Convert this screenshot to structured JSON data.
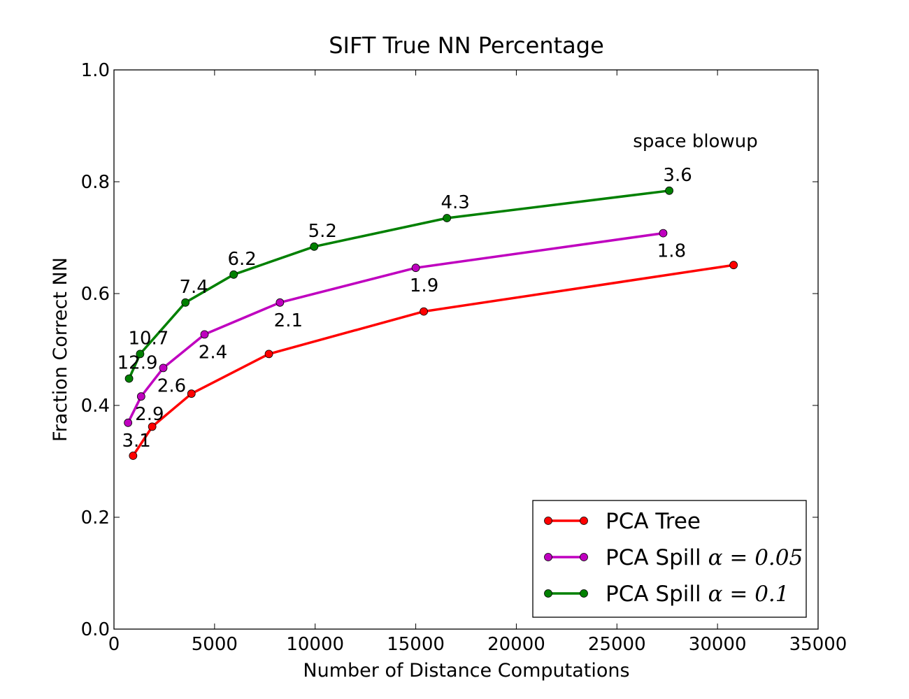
{
  "chart_data": {
    "type": "line",
    "title": "SIFT True NN Percentage",
    "xlabel": "Number of Distance Computations",
    "ylabel": "Fraction Correct NN",
    "xlim": [
      0,
      35000
    ],
    "ylim": [
      0.0,
      1.0
    ],
    "xticks": [
      0,
      5000,
      10000,
      15000,
      20000,
      25000,
      30000,
      35000
    ],
    "xtick_labels": [
      "0",
      "5000",
      "10000",
      "15000",
      "20000",
      "25000",
      "30000",
      "35000"
    ],
    "yticks": [
      0.0,
      0.2,
      0.4,
      0.6,
      0.8,
      1.0
    ],
    "ytick_labels": [
      "0.0",
      "0.2",
      "0.4",
      "0.6",
      "0.8",
      "1.0"
    ],
    "grid": false,
    "legend_position": "bottom-right",
    "series": [
      {
        "name": "PCA Tree",
        "color": "#ff0000",
        "points": [
          {
            "x": 950,
            "y": 0.31
          },
          {
            "x": 1900,
            "y": 0.362
          },
          {
            "x": 3850,
            "y": 0.421
          },
          {
            "x": 7700,
            "y": 0.492
          },
          {
            "x": 15400,
            "y": 0.568
          },
          {
            "x": 30800,
            "y": 0.651
          }
        ],
        "labels": []
      },
      {
        "name": "PCA Spill",
        "legend_math": "α = 0.05",
        "color": "#bf00bf",
        "points": [
          {
            "x": 700,
            "y": 0.369
          },
          {
            "x": 1350,
            "y": 0.416
          },
          {
            "x": 2450,
            "y": 0.467
          },
          {
            "x": 4500,
            "y": 0.527
          },
          {
            "x": 8250,
            "y": 0.584
          },
          {
            "x": 15000,
            "y": 0.646
          },
          {
            "x": 27300,
            "y": 0.708
          }
        ],
        "labels": [
          {
            "x": 700,
            "y": 0.369,
            "text": "3.1",
            "pos": "below"
          },
          {
            "x": 1350,
            "y": 0.416,
            "text": "2.9",
            "pos": "below"
          },
          {
            "x": 2450,
            "y": 0.467,
            "text": "2.6",
            "pos": "below"
          },
          {
            "x": 4500,
            "y": 0.527,
            "text": "2.4",
            "pos": "below"
          },
          {
            "x": 8250,
            "y": 0.584,
            "text": "2.1",
            "pos": "below"
          },
          {
            "x": 15000,
            "y": 0.646,
            "text": "1.9",
            "pos": "below"
          },
          {
            "x": 27300,
            "y": 0.708,
            "text": "1.8",
            "pos": "below"
          }
        ]
      },
      {
        "name": "PCA Spill",
        "legend_math": "α = 0.1",
        "color": "#008000",
        "points": [
          {
            "x": 750,
            "y": 0.448
          },
          {
            "x": 1300,
            "y": 0.492
          },
          {
            "x": 3550,
            "y": 0.584
          },
          {
            "x": 5950,
            "y": 0.634
          },
          {
            "x": 9950,
            "y": 0.684
          },
          {
            "x": 16550,
            "y": 0.735
          },
          {
            "x": 27600,
            "y": 0.784
          }
        ],
        "labels": [
          {
            "x": 750,
            "y": 0.448,
            "text": "12.9",
            "pos": "above"
          },
          {
            "x": 1300,
            "y": 0.492,
            "text": "10.7",
            "pos": "above"
          },
          {
            "x": 3550,
            "y": 0.584,
            "text": "7.4",
            "pos": "above"
          },
          {
            "x": 5950,
            "y": 0.634,
            "text": "6.2",
            "pos": "above"
          },
          {
            "x": 9950,
            "y": 0.684,
            "text": "5.2",
            "pos": "above"
          },
          {
            "x": 16550,
            "y": 0.735,
            "text": "4.3",
            "pos": "above"
          },
          {
            "x": 27600,
            "y": 0.784,
            "text": "3.6",
            "pos": "above"
          }
        ]
      }
    ],
    "annotations": [
      {
        "x": 28900,
        "y": 0.862,
        "text": "space blowup"
      }
    ]
  }
}
